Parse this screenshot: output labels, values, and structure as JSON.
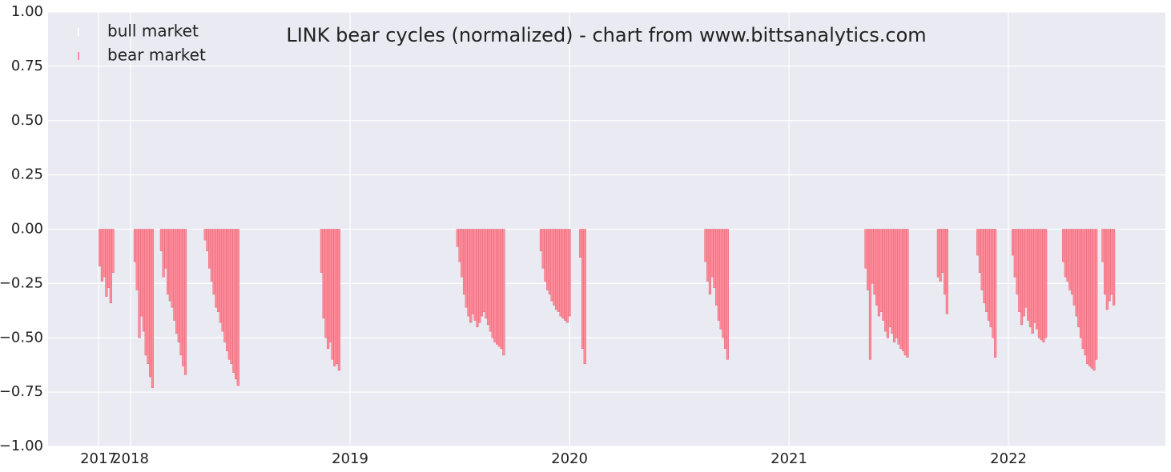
{
  "chart_data": {
    "type": "bar",
    "title": "LINK bear cycles (normalized)  - chart from www.bittsanalytics.com",
    "xlim": [
      2017.624,
      2022.715
    ],
    "xticks": [
      {
        "value": 2017.854,
        "label": "2017"
      },
      2018,
      2019,
      2020,
      2021,
      2022
    ],
    "ylim": [
      -1,
      1
    ],
    "yticks": [
      {
        "value": -1,
        "label": "−1.00"
      },
      {
        "value": -0.75,
        "label": "−0.75"
      },
      {
        "value": -0.5,
        "label": "−0.50"
      },
      {
        "value": -0.25,
        "label": "−0.25"
      },
      {
        "value": 0,
        "label": "0.00"
      },
      {
        "value": 0.25,
        "label": "0.25"
      },
      {
        "value": 0.5,
        "label": "0.50"
      },
      {
        "value": 0.75,
        "label": "0.75"
      },
      {
        "value": 1,
        "label": "1.00"
      }
    ],
    "grid": true,
    "legend": "upper left",
    "series": [
      {
        "name": "bull market",
        "color": "#ffffff",
        "x": [],
        "values": []
      },
      {
        "name": "bear market",
        "color": "#ff8c9a",
        "x": [
          2017.86,
          2017.87,
          2017.88,
          2017.89,
          2017.9,
          2017.91,
          2017.92,
          2018.02,
          2018.03,
          2018.04,
          2018.05,
          2018.06,
          2018.07,
          2018.08,
          2018.09,
          2018.1,
          2018.14,
          2018.15,
          2018.16,
          2018.17,
          2018.18,
          2018.19,
          2018.2,
          2018.21,
          2018.22,
          2018.23,
          2018.24,
          2018.25,
          2018.34,
          2018.35,
          2018.36,
          2018.37,
          2018.38,
          2018.39,
          2018.4,
          2018.41,
          2018.42,
          2018.43,
          2018.44,
          2018.45,
          2018.46,
          2018.47,
          2018.48,
          2018.49,
          2018.87,
          2018.88,
          2018.89,
          2018.9,
          2018.91,
          2018.92,
          2018.93,
          2018.94,
          2018.95,
          2019.49,
          2019.5,
          2019.51,
          2019.52,
          2019.53,
          2019.54,
          2019.55,
          2019.56,
          2019.57,
          2019.58,
          2019.59,
          2019.6,
          2019.61,
          2019.62,
          2019.63,
          2019.64,
          2019.65,
          2019.66,
          2019.67,
          2019.68,
          2019.69,
          2019.7,
          2019.87,
          2019.88,
          2019.89,
          2019.9,
          2019.91,
          2019.92,
          2019.93,
          2019.94,
          2019.95,
          2019.96,
          2019.97,
          2019.98,
          2019.99,
          2020.0,
          2020.05,
          2020.06,
          2020.07,
          2020.62,
          2020.63,
          2020.64,
          2020.65,
          2020.66,
          2020.67,
          2020.68,
          2020.69,
          2020.7,
          2020.71,
          2020.72,
          2021.35,
          2021.36,
          2021.37,
          2021.38,
          2021.39,
          2021.4,
          2021.41,
          2021.42,
          2021.43,
          2021.44,
          2021.45,
          2021.46,
          2021.47,
          2021.48,
          2021.49,
          2021.5,
          2021.51,
          2021.52,
          2021.53,
          2021.54,
          2021.68,
          2021.69,
          2021.7,
          2021.71,
          2021.72,
          2021.86,
          2021.87,
          2021.88,
          2021.89,
          2021.9,
          2021.91,
          2021.92,
          2021.93,
          2021.94,
          2022.02,
          2022.03,
          2022.04,
          2022.05,
          2022.06,
          2022.07,
          2022.08,
          2022.09,
          2022.1,
          2022.11,
          2022.12,
          2022.13,
          2022.14,
          2022.15,
          2022.16,
          2022.17,
          2022.25,
          2022.26,
          2022.27,
          2022.28,
          2022.29,
          2022.3,
          2022.31,
          2022.32,
          2022.33,
          2022.34,
          2022.35,
          2022.36,
          2022.37,
          2022.38,
          2022.39,
          2022.4,
          2022.43,
          2022.44,
          2022.45,
          2022.46,
          2022.47,
          2022.48
        ],
        "values": [
          -0.17,
          -0.24,
          -0.22,
          -0.31,
          -0.27,
          -0.34,
          -0.2,
          -0.15,
          -0.28,
          -0.5,
          -0.4,
          -0.47,
          -0.58,
          -0.62,
          -0.68,
          -0.73,
          -0.1,
          -0.22,
          -0.18,
          -0.3,
          -0.33,
          -0.36,
          -0.42,
          -0.48,
          -0.52,
          -0.58,
          -0.63,
          -0.67,
          -0.05,
          -0.1,
          -0.18,
          -0.24,
          -0.3,
          -0.36,
          -0.38,
          -0.43,
          -0.47,
          -0.52,
          -0.56,
          -0.6,
          -0.62,
          -0.66,
          -0.69,
          -0.72,
          -0.2,
          -0.41,
          -0.5,
          -0.55,
          -0.52,
          -0.6,
          -0.63,
          -0.62,
          -0.65,
          -0.08,
          -0.15,
          -0.22,
          -0.3,
          -0.36,
          -0.4,
          -0.43,
          -0.39,
          -0.42,
          -0.45,
          -0.43,
          -0.4,
          -0.38,
          -0.41,
          -0.44,
          -0.47,
          -0.5,
          -0.52,
          -0.53,
          -0.54,
          -0.55,
          -0.58,
          -0.1,
          -0.18,
          -0.24,
          -0.28,
          -0.3,
          -0.33,
          -0.35,
          -0.37,
          -0.38,
          -0.4,
          -0.41,
          -0.42,
          -0.43,
          -0.4,
          -0.13,
          -0.55,
          -0.62,
          -0.15,
          -0.24,
          -0.3,
          -0.22,
          -0.27,
          -0.35,
          -0.42,
          -0.46,
          -0.5,
          -0.55,
          -0.6,
          -0.18,
          -0.28,
          -0.6,
          -0.25,
          -0.3,
          -0.35,
          -0.4,
          -0.38,
          -0.42,
          -0.47,
          -0.5,
          -0.45,
          -0.48,
          -0.52,
          -0.5,
          -0.53,
          -0.55,
          -0.56,
          -0.58,
          -0.59,
          -0.22,
          -0.24,
          -0.2,
          -0.3,
          -0.39,
          -0.12,
          -0.2,
          -0.28,
          -0.34,
          -0.38,
          -0.42,
          -0.45,
          -0.5,
          -0.59,
          -0.12,
          -0.22,
          -0.3,
          -0.38,
          -0.44,
          -0.4,
          -0.36,
          -0.42,
          -0.45,
          -0.48,
          -0.43,
          -0.46,
          -0.5,
          -0.51,
          -0.52,
          -0.5,
          -0.15,
          -0.22,
          -0.24,
          -0.28,
          -0.3,
          -0.35,
          -0.4,
          -0.45,
          -0.5,
          -0.55,
          -0.58,
          -0.62,
          -0.63,
          -0.64,
          -0.65,
          -0.6,
          -0.15,
          -0.3,
          -0.37,
          -0.33,
          -0.3,
          -0.35
        ]
      }
    ]
  }
}
